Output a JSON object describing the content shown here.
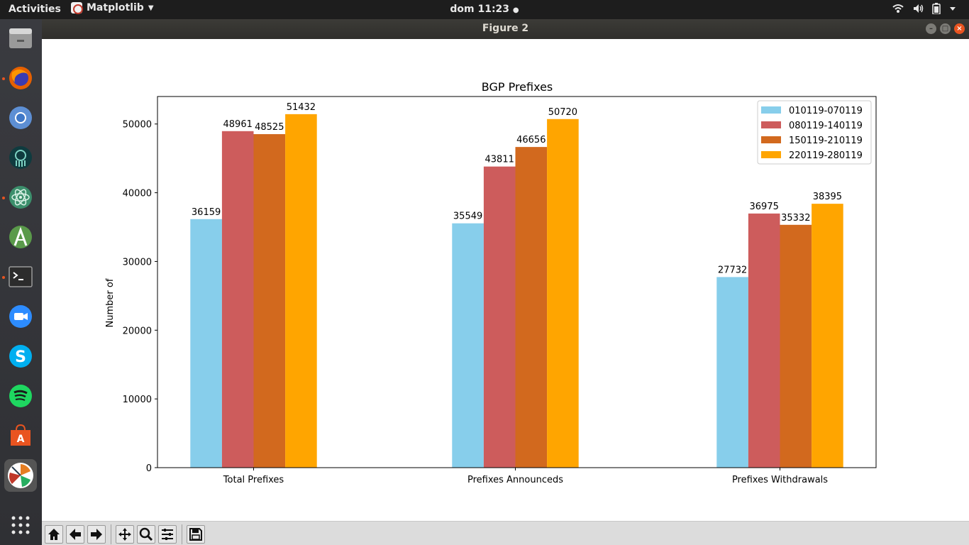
{
  "topbar": {
    "activities": "Activities",
    "app_name": "Matplotlib",
    "clock": "dom 11:23"
  },
  "dock": {
    "items": [
      "files-icon",
      "firefox-icon",
      "chromium-icon",
      "gitkraken-icon",
      "atom-icon",
      "android-studio-icon",
      "terminal-icon",
      "zoom-icon",
      "skype-icon",
      "spotify-icon",
      "software-center-icon",
      "matplotlib-icon",
      "show-apps-icon"
    ]
  },
  "window": {
    "title": "Figure 2"
  },
  "toolbar": {
    "buttons": [
      "home-icon",
      "back-icon",
      "forward-icon",
      "pan-icon",
      "zoom-icon",
      "configure-subplots-icon",
      "save-icon"
    ]
  },
  "chart_data": {
    "type": "bar",
    "title": "BGP Prefixes",
    "xlabel": "",
    "ylabel": "Number of",
    "categories": [
      "Total Prefixes",
      "Prefixes Announceds",
      "Prefixes Withdrawals"
    ],
    "ylim": [
      0,
      54000
    ],
    "yticks": [
      0,
      10000,
      20000,
      30000,
      40000,
      50000
    ],
    "legend_position": "top-right",
    "grid": false,
    "series": [
      {
        "name": "010119-070119",
        "color": "#87ceeb",
        "values": [
          36159,
          35549,
          27732
        ]
      },
      {
        "name": "080119-140119",
        "color": "#cd5c5c",
        "values": [
          48961,
          43811,
          36975
        ]
      },
      {
        "name": "150119-210119",
        "color": "#d2691e",
        "values": [
          48525,
          46656,
          35332
        ]
      },
      {
        "name": "220119-280119",
        "color": "#ffa500",
        "values": [
          51432,
          50720,
          38395
        ]
      }
    ]
  }
}
